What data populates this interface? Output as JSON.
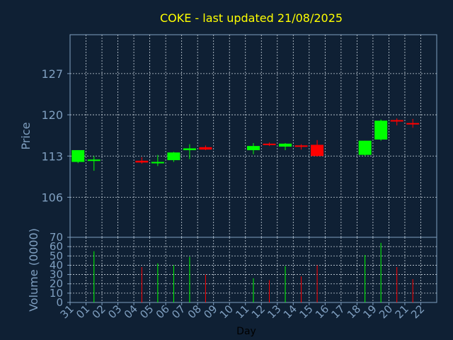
{
  "chart_data": {
    "type": "candlestick",
    "title": "COKE - last updated 21/08/2025",
    "xlabel": "Day",
    "price_panel": {
      "ylabel": "Price",
      "y_ticks": [
        106,
        113,
        120,
        127
      ],
      "ylim": [
        99.2,
        133.6
      ],
      "grid": true
    },
    "volume_panel": {
      "ylabel": "Volume (0000)",
      "y_ticks": [
        0,
        10,
        20,
        30,
        40,
        50,
        60,
        70
      ],
      "ylim": [
        0,
        70
      ],
      "grid": true
    },
    "x_ticks": [
      "31",
      "01",
      "02",
      "03",
      "04",
      "05",
      "06",
      "07",
      "08",
      "09",
      "10",
      "11",
      "12",
      "13",
      "14",
      "15",
      "16",
      "17",
      "18",
      "19",
      "20",
      "21",
      "22"
    ],
    "candles": [
      {
        "day": "31",
        "open": 112.0,
        "high": 114.0,
        "low": 111.8,
        "close": 114.0,
        "volume": 0
      },
      {
        "day": "01",
        "open": 112.2,
        "high": 113.0,
        "low": 110.5,
        "close": 112.4,
        "volume": 55
      },
      {
        "day": "04",
        "open": 112.2,
        "high": 112.8,
        "low": 111.7,
        "close": 111.9,
        "volume": 38
      },
      {
        "day": "05",
        "open": 111.8,
        "high": 113.2,
        "low": 111.3,
        "close": 112.0,
        "volume": 42
      },
      {
        "day": "06",
        "open": 112.3,
        "high": 113.7,
        "low": 112.0,
        "close": 113.6,
        "volume": 40
      },
      {
        "day": "07",
        "open": 114.0,
        "high": 115.0,
        "low": 112.5,
        "close": 114.3,
        "volume": 49
      },
      {
        "day": "08",
        "open": 114.5,
        "high": 114.8,
        "low": 114.0,
        "close": 114.1,
        "volume": 30
      },
      {
        "day": "11",
        "open": 114.0,
        "high": 115.2,
        "low": 113.3,
        "close": 114.7,
        "volume": 26
      },
      {
        "day": "12",
        "open": 115.1,
        "high": 115.3,
        "low": 114.7,
        "close": 114.9,
        "volume": 24
      },
      {
        "day": "13",
        "open": 114.6,
        "high": 115.2,
        "low": 114.0,
        "close": 115.1,
        "volume": 39
      },
      {
        "day": "14",
        "open": 114.8,
        "high": 115.0,
        "low": 114.1,
        "close": 114.6,
        "volume": 28
      },
      {
        "day": "15",
        "open": 114.9,
        "high": 115.7,
        "low": 112.9,
        "close": 113.0,
        "volume": 40
      },
      {
        "day": "18",
        "open": 113.2,
        "high": 115.6,
        "low": 113.0,
        "close": 115.6,
        "volume": 51
      },
      {
        "day": "19",
        "open": 115.8,
        "high": 119.2,
        "low": 115.6,
        "close": 119.0,
        "volume": 64
      },
      {
        "day": "20",
        "open": 119.1,
        "high": 119.4,
        "low": 118.2,
        "close": 118.9,
        "volume": 38
      },
      {
        "day": "21",
        "open": 118.6,
        "high": 119.3,
        "low": 117.8,
        "close": 118.4,
        "volume": 25
      }
    ]
  },
  "colors": {
    "background": "#0f2034",
    "title": "#ffff00",
    "axis_text": "#7f9fc0",
    "xlabel": "#000000",
    "up": "#00ff00",
    "down": "#ff0000",
    "grid": "#c8d2dc",
    "frame": "#7f9fc0"
  }
}
